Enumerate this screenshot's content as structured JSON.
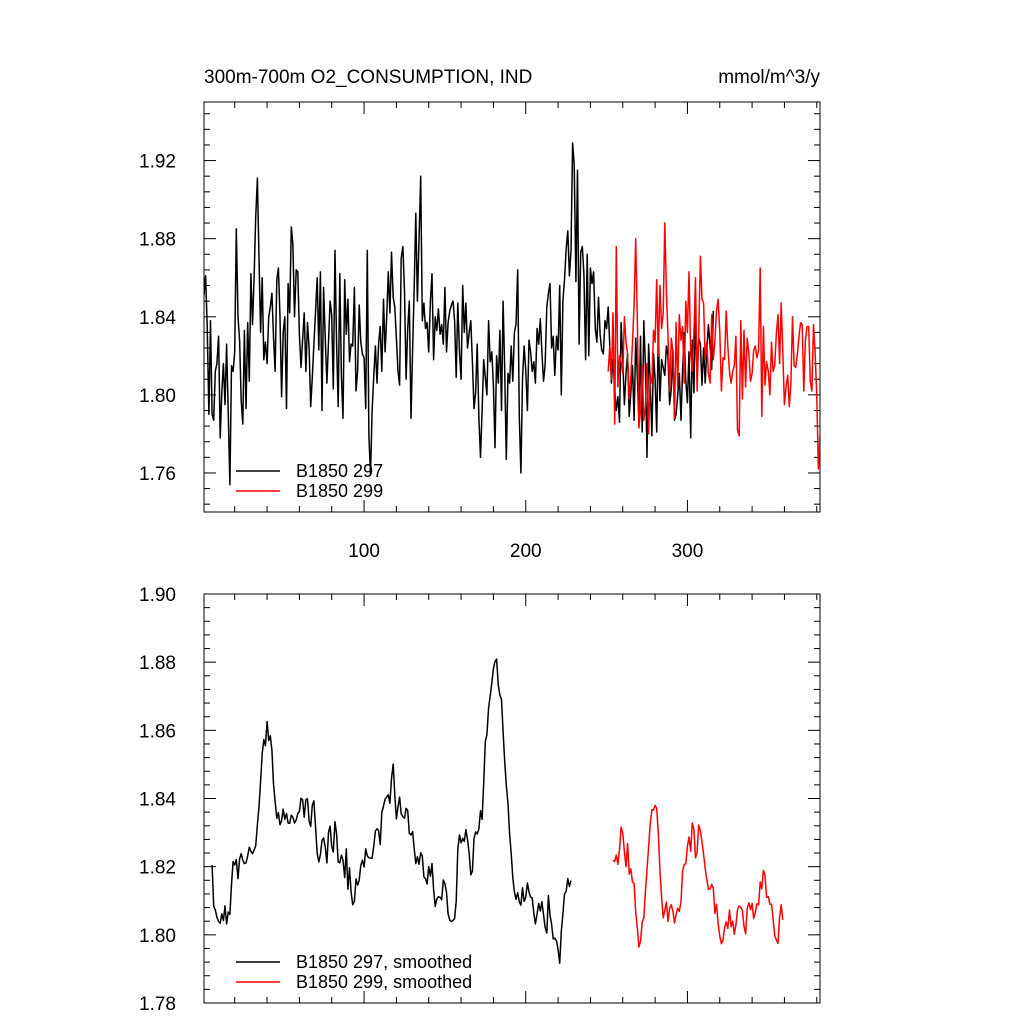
{
  "chart_data": [
    {
      "type": "line",
      "title_left": "300m-700m O2_CONSUMPTION, IND",
      "title_right": "mmol/m^3/y",
      "xlim": [
        1,
        382
      ],
      "ylim": [
        1.74,
        1.95
      ],
      "x_ticks": [
        100,
        200,
        300
      ],
      "y_ticks": [
        1.76,
        1.8,
        1.84,
        1.88,
        1.92
      ],
      "y_tick_labels": [
        "1.76",
        "1.80",
        "1.84",
        "1.88",
        "1.92"
      ],
      "legend": {
        "position": "bottom-left"
      },
      "series": [
        {
          "name": "B1850 297",
          "color": "#000000",
          "x_start": 1,
          "values": [
            1.851,
            1.861,
            1.835,
            1.79,
            1.838,
            1.79,
            1.787,
            1.812,
            1.816,
            1.83,
            1.778,
            1.801,
            1.816,
            1.795,
            1.826,
            1.79,
            1.754,
            1.815,
            1.812,
            1.822,
            1.885,
            1.84,
            1.828,
            1.797,
            1.785,
            1.833,
            1.793,
            1.837,
            1.807,
            1.862,
            1.836,
            1.86,
            1.891,
            1.911,
            1.87,
            1.832,
            1.86,
            1.818,
            1.827,
            1.816,
            1.84,
            1.845,
            1.852,
            1.83,
            1.812,
            1.859,
            1.865,
            1.84,
            1.799,
            1.832,
            1.84,
            1.793,
            1.857,
            1.842,
            1.886,
            1.877,
            1.84,
            1.864,
            1.863,
            1.831,
            1.814,
            1.828,
            1.842,
            1.812,
            1.837,
            1.824,
            1.794,
            1.809,
            1.826,
            1.843,
            1.86,
            1.823,
            1.863,
            1.792,
            1.855,
            1.828,
            1.806,
            1.827,
            1.848,
            1.841,
            1.803,
            1.874,
            1.826,
            1.794,
            1.862,
            1.81,
            1.788,
            1.859,
            1.831,
            1.849,
            1.817,
            1.826,
            1.825,
            1.855,
            1.802,
            1.812,
            1.846,
            1.827,
            1.821,
            1.819,
            1.793,
            1.874,
            1.779,
            1.759,
            1.792,
            1.81,
            1.825,
            1.806,
            1.826,
            1.835,
            1.812,
            1.849,
            1.822,
            1.84,
            1.863,
            1.842,
            1.873,
            1.85,
            1.845,
            1.829,
            1.812,
            1.805,
            1.87,
            1.876,
            1.853,
            1.808,
            1.834,
            1.848,
            1.788,
            1.823,
            1.855,
            1.893,
            1.848,
            1.879,
            1.912,
            1.838,
            1.847,
            1.834,
            1.837,
            1.822,
            1.848,
            1.862,
            1.818,
            1.84,
            1.833,
            1.844,
            1.831,
            1.836,
            1.826,
            1.855,
            1.822,
            1.837,
            1.843,
            1.846,
            1.848,
            1.838,
            1.809,
            1.847,
            1.822,
            1.808,
            1.856,
            1.832,
            1.847,
            1.824,
            1.832,
            1.838,
            1.817,
            1.793,
            1.801,
            1.826,
            1.788,
            1.768,
            1.792,
            1.818,
            1.809,
            1.8,
            1.838,
            1.817,
            1.822,
            1.805,
            1.773,
            1.82,
            1.806,
            1.833,
            1.792,
            1.848,
            1.813,
            1.767,
            1.811,
            1.806,
            1.825,
            1.807,
            1.832,
            1.836,
            1.864,
            1.789,
            1.76,
            1.808,
            1.825,
            1.813,
            1.792,
            1.828,
            1.822,
            1.812,
            1.817,
            1.806,
            1.834,
            1.826,
            1.839,
            1.822,
            1.807,
            1.815,
            1.845,
            1.852,
            1.857,
            1.824,
            1.83,
            1.81,
            1.83,
            1.823,
            1.856,
            1.8,
            1.848,
            1.859,
            1.875,
            1.884,
            1.861,
            1.874,
            1.929,
            1.918,
            1.858,
            1.915,
            1.826,
            1.873,
            1.876,
            1.862,
            1.818,
            1.872,
            1.82,
            1.865,
            1.857,
            1.863,
            1.834,
            1.827,
            1.85,
            1.831,
            1.823,
            1.821,
            1.838,
            1.834,
            1.845,
            1.825,
            1.806,
            1.818,
            1.803,
            1.792,
            1.799,
            1.786,
            1.837,
            1.817,
            1.795,
            1.811,
            1.821,
            1.789,
            1.801,
            1.815,
            1.787,
            1.829,
            1.81,
            1.785,
            1.83,
            1.781,
            1.838,
            1.815,
            1.768,
            1.826,
            1.806,
            1.779,
            1.821,
            1.808,
            1.781,
            1.833,
            1.797,
            1.818,
            1.814,
            1.81,
            1.825,
            1.82,
            1.795,
            1.803,
            1.823,
            1.787,
            1.79,
            1.8,
            1.811,
            1.787,
            1.813,
            1.832,
            1.807,
            1.796,
            1.822,
            1.778,
            1.828,
            1.801,
            1.843,
            1.809,
            1.829,
            1.826,
            1.805,
            1.824,
            1.806,
            1.823,
            1.836,
            1.825,
            1.813,
            1.843
          ]
        },
        {
          "name": "B1850 299",
          "color": "#ff0000",
          "x_start": 251,
          "values": [
            1.812,
            1.825,
            1.808,
            1.842,
            1.785,
            1.876,
            1.804,
            1.82,
            1.817,
            1.811,
            1.84,
            1.827,
            1.821,
            1.798,
            1.808,
            1.827,
            1.846,
            1.88,
            1.84,
            1.783,
            1.792,
            1.815,
            1.787,
            1.794,
            1.816,
            1.78,
            1.81,
            1.806,
            1.833,
            1.827,
            1.859,
            1.82,
            1.856,
            1.834,
            1.842,
            1.888,
            1.853,
            1.83,
            1.802,
            1.829,
            1.822,
            1.788,
            1.837,
            1.804,
            1.841,
            1.828,
            1.835,
            1.806,
            1.848,
            1.832,
            1.863,
            1.821,
            1.812,
            1.831,
            1.86,
            1.802,
            1.83,
            1.871,
            1.849,
            1.847,
            1.818,
            1.827,
            1.811,
            1.806,
            1.841,
            1.818,
            1.828,
            1.843,
            1.849,
            1.832,
            1.802,
            1.819,
            1.818,
            1.843,
            1.825,
            1.812,
            1.806,
            1.812,
            1.815,
            1.83,
            1.782,
            1.779,
            1.838,
            1.798,
            1.833,
            1.804,
            1.829,
            1.821,
            1.807,
            1.811,
            1.823,
            1.825,
            1.819,
            1.823,
            1.865,
            1.789,
            1.835,
            1.805,
            1.817,
            1.812,
            1.8,
            1.827,
            1.812,
            1.815,
            1.831,
            1.841,
            1.816,
            1.847,
            1.822,
            1.795,
            1.804,
            1.81,
            1.794,
            1.806,
            1.84,
            1.815,
            1.814,
            1.821,
            1.83,
            1.837,
            1.836,
            1.802,
            1.828,
            1.835,
            1.835,
            1.807,
            1.802,
            1.836,
            1.822,
            1.799,
            1.762,
            1.78,
            1.782,
            1.775,
            1.86,
            1.877,
            1.808
          ]
        }
      ]
    },
    {
      "type": "line",
      "xlim": [
        1,
        382
      ],
      "ylim": [
        1.78,
        1.9
      ],
      "x_ticks": [
        100,
        200,
        300
      ],
      "y_ticks": [
        1.78,
        1.8,
        1.82,
        1.84,
        1.86,
        1.88,
        1.9
      ],
      "y_tick_labels": [
        "1.78",
        "1.80",
        "1.82",
        "1.84",
        "1.86",
        "1.88",
        "1.90"
      ],
      "legend": {
        "position": "bottom-left"
      },
      "series": [
        {
          "name": "B1850 297, smoothed",
          "color": "#000000",
          "x_start": 6,
          "values": [
            1.8205,
            1.8085,
            1.8073,
            1.8052,
            1.8039,
            1.8034,
            1.8062,
            1.8042,
            1.8085,
            1.8032,
            1.8067,
            1.806,
            1.8148,
            1.8215,
            1.8205,
            1.8221,
            1.8165,
            1.8223,
            1.8238,
            1.8219,
            1.8209,
            1.8211,
            1.8232,
            1.8257,
            1.8245,
            1.8238,
            1.8249,
            1.8261,
            1.8323,
            1.8376,
            1.8451,
            1.8531,
            1.8573,
            1.8555,
            1.8626,
            1.857,
            1.8584,
            1.8543,
            1.8443,
            1.8392,
            1.8342,
            1.8359,
            1.8323,
            1.8335,
            1.8369,
            1.8339,
            1.8356,
            1.8328,
            1.8327,
            1.8351,
            1.8345,
            1.8328,
            1.8337,
            1.8356,
            1.8362,
            1.8401,
            1.8396,
            1.8345,
            1.8397,
            1.8399,
            1.8334,
            1.8318,
            1.838,
            1.8393,
            1.8315,
            1.8239,
            1.8214,
            1.8235,
            1.8277,
            1.8284,
            1.8256,
            1.8211,
            1.83,
            1.8319,
            1.826,
            1.8243,
            1.8332,
            1.8295,
            1.8214,
            1.8211,
            1.8234,
            1.8219,
            1.8168,
            1.8252,
            1.8134,
            1.8197,
            1.8126,
            1.8088,
            1.8099,
            1.8164,
            1.8146,
            1.816,
            1.8204,
            1.8219,
            1.8199,
            1.8252,
            1.8232,
            1.8226,
            1.8225,
            1.8225,
            1.8261,
            1.8305,
            1.8311,
            1.8306,
            1.8265,
            1.8359,
            1.8378,
            1.8398,
            1.8404,
            1.8411,
            1.8386,
            1.8459,
            1.8501,
            1.841,
            1.834,
            1.8376,
            1.8404,
            1.8355,
            1.8347,
            1.8342,
            1.8371,
            1.8365,
            1.8298,
            1.8293,
            1.8303,
            1.8253,
            1.8209,
            1.8229,
            1.8207,
            1.8241,
            1.8231,
            1.817,
            1.8165,
            1.8149,
            1.82,
            1.8172,
            1.8209,
            1.8133,
            1.8083,
            1.8105,
            1.8112,
            1.811,
            1.8103,
            1.8161,
            1.815,
            1.8125,
            1.8061,
            1.8043,
            1.8039,
            1.8042,
            1.8048,
            1.8098,
            1.8251,
            1.8293,
            1.827,
            1.8283,
            1.8274,
            1.8309,
            1.828,
            1.8238,
            1.8176,
            1.8187,
            1.8282,
            1.8302,
            1.8296,
            1.8311,
            1.8364,
            1.8339,
            1.8446,
            1.8567,
            1.8587,
            1.8666,
            1.8701,
            1.8739,
            1.8781,
            1.8802,
            1.8809,
            1.8732,
            1.8703,
            1.8691,
            1.8596,
            1.8509,
            1.8439,
            1.8385,
            1.8296,
            1.8239,
            1.8168,
            1.8126,
            1.8104,
            1.8124,
            1.8097,
            1.8087,
            1.8138,
            1.8098,
            1.811,
            1.8152,
            1.8126,
            1.8111,
            1.8108,
            1.8064,
            1.8032,
            1.8062,
            1.8092,
            1.807,
            1.8097,
            1.806,
            1.8022,
            1.8005,
            1.8115,
            1.8058,
            1.8031,
            1.7988,
            1.799,
            1.7982,
            1.7956,
            1.7917,
            1.801,
            1.8062,
            1.8119,
            1.8129,
            1.8165,
            1.8142,
            1.8159
          ]
        },
        {
          "name": "B1850 299, smoothed",
          "color": "#ff0000",
          "x_start": 254,
          "values": [
            1.8219,
            1.8215,
            1.8234,
            1.8207,
            1.8251,
            1.8316,
            1.8298,
            1.8244,
            1.82,
            1.8267,
            1.8178,
            1.8194,
            1.8154,
            1.8151,
            1.8066,
            1.8022,
            1.7964,
            1.7981,
            1.8038,
            1.8049,
            1.8126,
            1.819,
            1.8258,
            1.8325,
            1.8367,
            1.8366,
            1.838,
            1.8371,
            1.83,
            1.819,
            1.811,
            1.805,
            1.8072,
            1.8096,
            1.8039,
            1.8078,
            1.8088,
            1.8069,
            1.8035,
            1.806,
            1.8078,
            1.8069,
            1.8097,
            1.8188,
            1.8206,
            1.8209,
            1.826,
            1.8287,
            1.8245,
            1.8328,
            1.831,
            1.8226,
            1.8242,
            1.8322,
            1.8305,
            1.8273,
            1.8236,
            1.8195,
            1.8162,
            1.8133,
            1.8135,
            1.8148,
            1.8137,
            1.8063,
            1.809,
            1.8034,
            1.7996,
            1.7974,
            1.7984,
            1.8022,
            1.8038,
            1.8019,
            1.8073,
            1.8024,
            1.804,
            1.8002,
            1.8029,
            1.8074,
            1.8085,
            1.8081,
            1.8071,
            1.8025,
            1.8003,
            1.8077,
            1.8094,
            1.8074,
            1.8092,
            1.8048,
            1.8066,
            1.8091,
            1.8088,
            1.8155,
            1.8135,
            1.8189,
            1.8175,
            1.811,
            1.8112,
            1.809,
            1.809,
            1.8047,
            1.7999,
            1.7985,
            1.7975,
            1.8052,
            1.8088,
            1.8044
          ]
        }
      ]
    }
  ]
}
